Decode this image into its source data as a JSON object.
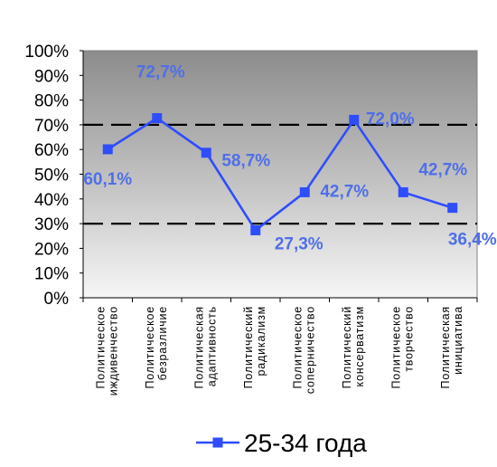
{
  "chart_data": {
    "type": "line",
    "categories": [
      [
        "Политическое",
        "иждивенчество"
      ],
      [
        "Политическое",
        "безразличие"
      ],
      [
        "Политическая",
        "адаптивность"
      ],
      [
        "Политический",
        "радикализм"
      ],
      [
        "Политическое",
        "соперничество"
      ],
      [
        "Политический",
        "консерватизм"
      ],
      [
        "Политическое",
        "творчество"
      ],
      [
        "Политическая",
        "инициатива"
      ]
    ],
    "series": [
      {
        "name": "25-34 года",
        "values": [
          60.1,
          72.7,
          58.7,
          27.3,
          42.7,
          72.0,
          42.7,
          36.4
        ],
        "data_labels": [
          "60,1%",
          "72,7%",
          "58,7%",
          "27,3%",
          "42,7%",
          "72,0%",
          "42,7%",
          "36,4%"
        ],
        "color": "#2f4dff"
      }
    ],
    "ylim": [
      0,
      100
    ],
    "yticks": [
      0,
      10,
      20,
      30,
      40,
      50,
      60,
      70,
      80,
      90,
      100
    ],
    "ytick_labels": [
      "0%",
      "10%",
      "20%",
      "30%",
      "40%",
      "50%",
      "60%",
      "70%",
      "80%",
      "90%",
      "100%"
    ],
    "reference_lines": [
      30,
      70
    ],
    "grid": false,
    "legend_position": "bottom",
    "label_color": "#4f6fe8",
    "plot_background": "gradient-gray"
  }
}
